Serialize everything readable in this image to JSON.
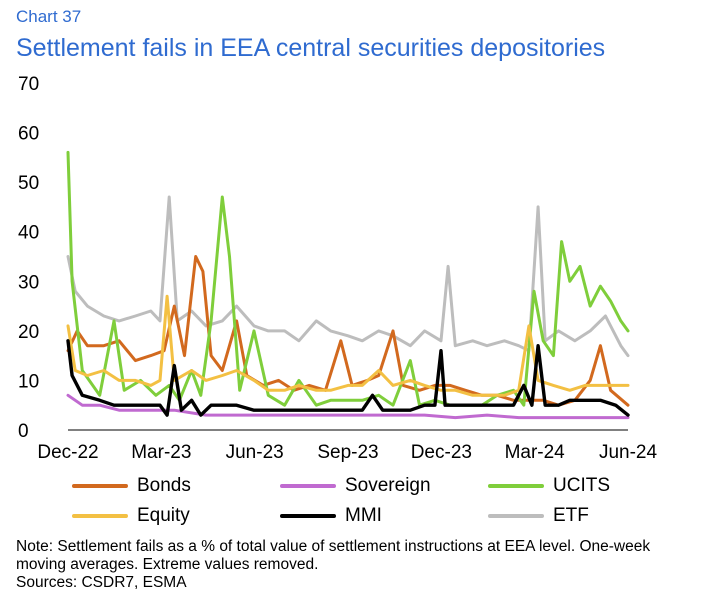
{
  "header": {
    "chart_number": "Chart 37",
    "title": "Settlement fails in EEA central securities depositories"
  },
  "footer": {
    "note": "Note: Settlement fails as a % of total value of settlement instructions at EEA level. One-week moving averages. Extreme values removed.",
    "sources": "Sources: CSDR7, ESMA"
  },
  "chart_data": {
    "type": "line",
    "title": "Settlement fails in EEA central securities depositories",
    "xlabel": "",
    "ylabel": "",
    "x_ticks": [
      "Dec-22",
      "Mar-23",
      "Jun-23",
      "Sep-23",
      "Dec-23",
      "Mar-24",
      "Jun-24"
    ],
    "y_ticks": [
      "0",
      "10",
      "20",
      "30",
      "40",
      "50",
      "60",
      "70"
    ],
    "ylim": [
      0,
      70
    ],
    "xlim": [
      "2022-12-01",
      "2024-06-01"
    ],
    "grid": false,
    "legend_position": "bottom",
    "series": [
      {
        "name": "Bonds",
        "color": "#d2691e",
        "points": [
          [
            "2022-12-01",
            16
          ],
          [
            "2022-12-10",
            20
          ],
          [
            "2022-12-20",
            17
          ],
          [
            "2023-01-05",
            17
          ],
          [
            "2023-01-20",
            18
          ],
          [
            "2023-02-05",
            14
          ],
          [
            "2023-02-20",
            15
          ],
          [
            "2023-03-05",
            16
          ],
          [
            "2023-03-15",
            25
          ],
          [
            "2023-03-25",
            15
          ],
          [
            "2023-04-05",
            35
          ],
          [
            "2023-04-12",
            32
          ],
          [
            "2023-04-20",
            15
          ],
          [
            "2023-05-01",
            12
          ],
          [
            "2023-05-15",
            22
          ],
          [
            "2023-05-25",
            11
          ],
          [
            "2023-06-10",
            9
          ],
          [
            "2023-06-25",
            10
          ],
          [
            "2023-07-10",
            8
          ],
          [
            "2023-07-25",
            9
          ],
          [
            "2023-08-10",
            8
          ],
          [
            "2023-08-25",
            18
          ],
          [
            "2023-09-05",
            9
          ],
          [
            "2023-09-20",
            10
          ],
          [
            "2023-10-01",
            11
          ],
          [
            "2023-10-15",
            20
          ],
          [
            "2023-10-25",
            9
          ],
          [
            "2023-11-10",
            8
          ],
          [
            "2023-11-25",
            9
          ],
          [
            "2023-12-10",
            9
          ],
          [
            "2023-12-25",
            8
          ],
          [
            "2024-01-10",
            7
          ],
          [
            "2024-01-25",
            7
          ],
          [
            "2024-02-10",
            6
          ],
          [
            "2024-02-25",
            6
          ],
          [
            "2024-03-10",
            6
          ],
          [
            "2024-03-25",
            5
          ],
          [
            "2024-04-10",
            6
          ],
          [
            "2024-04-25",
            10
          ],
          [
            "2024-05-05",
            17
          ],
          [
            "2024-05-15",
            8
          ],
          [
            "2024-06-01",
            5
          ]
        ]
      },
      {
        "name": "Sovereign",
        "color": "#c06ad0",
        "points": [
          [
            "2022-12-01",
            7
          ],
          [
            "2022-12-15",
            5
          ],
          [
            "2023-01-01",
            5
          ],
          [
            "2023-01-20",
            4
          ],
          [
            "2023-02-15",
            4
          ],
          [
            "2023-03-15",
            4
          ],
          [
            "2023-04-15",
            3
          ],
          [
            "2023-05-15",
            3
          ],
          [
            "2023-06-15",
            3
          ],
          [
            "2023-07-15",
            3
          ],
          [
            "2023-08-15",
            3
          ],
          [
            "2023-09-15",
            3
          ],
          [
            "2023-10-15",
            3
          ],
          [
            "2023-11-15",
            3
          ],
          [
            "2023-12-15",
            2.5
          ],
          [
            "2024-01-15",
            3
          ],
          [
            "2024-02-15",
            2.5
          ],
          [
            "2024-03-15",
            2.5
          ],
          [
            "2024-04-15",
            2.5
          ],
          [
            "2024-05-15",
            2.5
          ],
          [
            "2024-06-01",
            2.5
          ]
        ]
      },
      {
        "name": "UCITS",
        "color": "#7fce3b",
        "points": [
          [
            "2022-12-01",
            56
          ],
          [
            "2022-12-05",
            30
          ],
          [
            "2022-12-15",
            12
          ],
          [
            "2023-01-01",
            7
          ],
          [
            "2023-01-15",
            22
          ],
          [
            "2023-01-25",
            8
          ],
          [
            "2023-02-10",
            10
          ],
          [
            "2023-02-25",
            7
          ],
          [
            "2023-03-10",
            9
          ],
          [
            "2023-03-20",
            6
          ],
          [
            "2023-04-01",
            12
          ],
          [
            "2023-04-10",
            7
          ],
          [
            "2023-04-20",
            22
          ],
          [
            "2023-05-01",
            47
          ],
          [
            "2023-05-08",
            35
          ],
          [
            "2023-05-18",
            8
          ],
          [
            "2023-06-01",
            20
          ],
          [
            "2023-06-15",
            7
          ],
          [
            "2023-07-01",
            5
          ],
          [
            "2023-07-15",
            10
          ],
          [
            "2023-08-01",
            5
          ],
          [
            "2023-08-15",
            6
          ],
          [
            "2023-09-01",
            6
          ],
          [
            "2023-09-15",
            6
          ],
          [
            "2023-10-01",
            7
          ],
          [
            "2023-10-15",
            5
          ],
          [
            "2023-11-01",
            14
          ],
          [
            "2023-11-10",
            5
          ],
          [
            "2023-11-25",
            6
          ],
          [
            "2023-12-10",
            5
          ],
          [
            "2023-12-25",
            5
          ],
          [
            "2024-01-10",
            5
          ],
          [
            "2024-01-25",
            7
          ],
          [
            "2024-02-10",
            8
          ],
          [
            "2024-02-20",
            5
          ],
          [
            "2024-03-01",
            28
          ],
          [
            "2024-03-10",
            18
          ],
          [
            "2024-03-20",
            15
          ],
          [
            "2024-03-28",
            38
          ],
          [
            "2024-04-05",
            30
          ],
          [
            "2024-04-15",
            33
          ],
          [
            "2024-04-25",
            25
          ],
          [
            "2024-05-05",
            29
          ],
          [
            "2024-05-15",
            26
          ],
          [
            "2024-05-25",
            22
          ],
          [
            "2024-06-01",
            20
          ]
        ]
      },
      {
        "name": "Equity",
        "color": "#f3c043",
        "points": [
          [
            "2022-12-01",
            21
          ],
          [
            "2022-12-08",
            12
          ],
          [
            "2022-12-20",
            11
          ],
          [
            "2023-01-05",
            12
          ],
          [
            "2023-01-20",
            10
          ],
          [
            "2023-02-05",
            10
          ],
          [
            "2023-02-20",
            9
          ],
          [
            "2023-03-01",
            10
          ],
          [
            "2023-03-08",
            27
          ],
          [
            "2023-03-15",
            10
          ],
          [
            "2023-04-01",
            12
          ],
          [
            "2023-04-15",
            10
          ],
          [
            "2023-05-01",
            11
          ],
          [
            "2023-05-15",
            12
          ],
          [
            "2023-06-01",
            10
          ],
          [
            "2023-06-15",
            8
          ],
          [
            "2023-07-01",
            8
          ],
          [
            "2023-07-15",
            9
          ],
          [
            "2023-08-01",
            8
          ],
          [
            "2023-08-15",
            8
          ],
          [
            "2023-09-01",
            9
          ],
          [
            "2023-09-15",
            9
          ],
          [
            "2023-10-01",
            12
          ],
          [
            "2023-10-15",
            9
          ],
          [
            "2023-11-01",
            10
          ],
          [
            "2023-11-15",
            9
          ],
          [
            "2023-12-01",
            8
          ],
          [
            "2023-12-15",
            8
          ],
          [
            "2024-01-01",
            7
          ],
          [
            "2024-01-15",
            7
          ],
          [
            "2024-02-01",
            7
          ],
          [
            "2024-02-15",
            8
          ],
          [
            "2024-02-25",
            21
          ],
          [
            "2024-03-05",
            10
          ],
          [
            "2024-03-20",
            9
          ],
          [
            "2024-04-05",
            8
          ],
          [
            "2024-04-20",
            9
          ],
          [
            "2024-05-05",
            9
          ],
          [
            "2024-05-20",
            9
          ],
          [
            "2024-06-01",
            9
          ]
        ]
      },
      {
        "name": "MMI",
        "color": "#000000",
        "points": [
          [
            "2022-12-01",
            18
          ],
          [
            "2022-12-05",
            11
          ],
          [
            "2022-12-15",
            7
          ],
          [
            "2023-01-01",
            6
          ],
          [
            "2023-01-15",
            5
          ],
          [
            "2023-02-01",
            5
          ],
          [
            "2023-02-15",
            5
          ],
          [
            "2023-03-01",
            5
          ],
          [
            "2023-03-08",
            3
          ],
          [
            "2023-03-15",
            13
          ],
          [
            "2023-03-22",
            4
          ],
          [
            "2023-04-01",
            6
          ],
          [
            "2023-04-10",
            3
          ],
          [
            "2023-04-20",
            5
          ],
          [
            "2023-05-01",
            5
          ],
          [
            "2023-05-15",
            5
          ],
          [
            "2023-06-01",
            4
          ],
          [
            "2023-06-15",
            4
          ],
          [
            "2023-07-01",
            4
          ],
          [
            "2023-07-15",
            4
          ],
          [
            "2023-08-01",
            4
          ],
          [
            "2023-08-15",
            4
          ],
          [
            "2023-09-01",
            4
          ],
          [
            "2023-09-15",
            4
          ],
          [
            "2023-09-25",
            7
          ],
          [
            "2023-10-05",
            4
          ],
          [
            "2023-10-20",
            4
          ],
          [
            "2023-11-01",
            4
          ],
          [
            "2023-11-15",
            5
          ],
          [
            "2023-11-25",
            5
          ],
          [
            "2023-12-01",
            16
          ],
          [
            "2023-12-05",
            5
          ],
          [
            "2023-12-20",
            5
          ],
          [
            "2024-01-10",
            5
          ],
          [
            "2024-01-25",
            5
          ],
          [
            "2024-02-10",
            5
          ],
          [
            "2024-02-20",
            9
          ],
          [
            "2024-02-28",
            5
          ],
          [
            "2024-03-05",
            17
          ],
          [
            "2024-03-12",
            5
          ],
          [
            "2024-03-25",
            5
          ],
          [
            "2024-04-05",
            6
          ],
          [
            "2024-04-20",
            6
          ],
          [
            "2024-05-05",
            6
          ],
          [
            "2024-05-20",
            5
          ],
          [
            "2024-06-01",
            3
          ]
        ]
      },
      {
        "name": "ETF",
        "color": "#bdbdbd",
        "points": [
          [
            "2022-12-01",
            35
          ],
          [
            "2022-12-08",
            28
          ],
          [
            "2022-12-20",
            25
          ],
          [
            "2023-01-05",
            23
          ],
          [
            "2023-01-20",
            22
          ],
          [
            "2023-02-05",
            23
          ],
          [
            "2023-02-20",
            24
          ],
          [
            "2023-03-01",
            22
          ],
          [
            "2023-03-10",
            47
          ],
          [
            "2023-03-18",
            22
          ],
          [
            "2023-04-01",
            24
          ],
          [
            "2023-04-15",
            21
          ],
          [
            "2023-05-01",
            22
          ],
          [
            "2023-05-15",
            25
          ],
          [
            "2023-06-01",
            21
          ],
          [
            "2023-06-15",
            20
          ],
          [
            "2023-07-01",
            20
          ],
          [
            "2023-07-15",
            18
          ],
          [
            "2023-08-01",
            22
          ],
          [
            "2023-08-15",
            20
          ],
          [
            "2023-09-01",
            19
          ],
          [
            "2023-09-15",
            18
          ],
          [
            "2023-10-01",
            20
          ],
          [
            "2023-10-15",
            19
          ],
          [
            "2023-11-01",
            17
          ],
          [
            "2023-11-15",
            20
          ],
          [
            "2023-12-01",
            18
          ],
          [
            "2023-12-08",
            33
          ],
          [
            "2023-12-15",
            17
          ],
          [
            "2024-01-01",
            18
          ],
          [
            "2024-01-15",
            17
          ],
          [
            "2024-02-01",
            18
          ],
          [
            "2024-02-15",
            17
          ],
          [
            "2024-02-25",
            16
          ],
          [
            "2024-03-05",
            45
          ],
          [
            "2024-03-12",
            18
          ],
          [
            "2024-03-25",
            20
          ],
          [
            "2024-04-10",
            18
          ],
          [
            "2024-04-25",
            20
          ],
          [
            "2024-05-10",
            23
          ],
          [
            "2024-05-25",
            17
          ],
          [
            "2024-06-01",
            15
          ]
        ]
      }
    ]
  }
}
